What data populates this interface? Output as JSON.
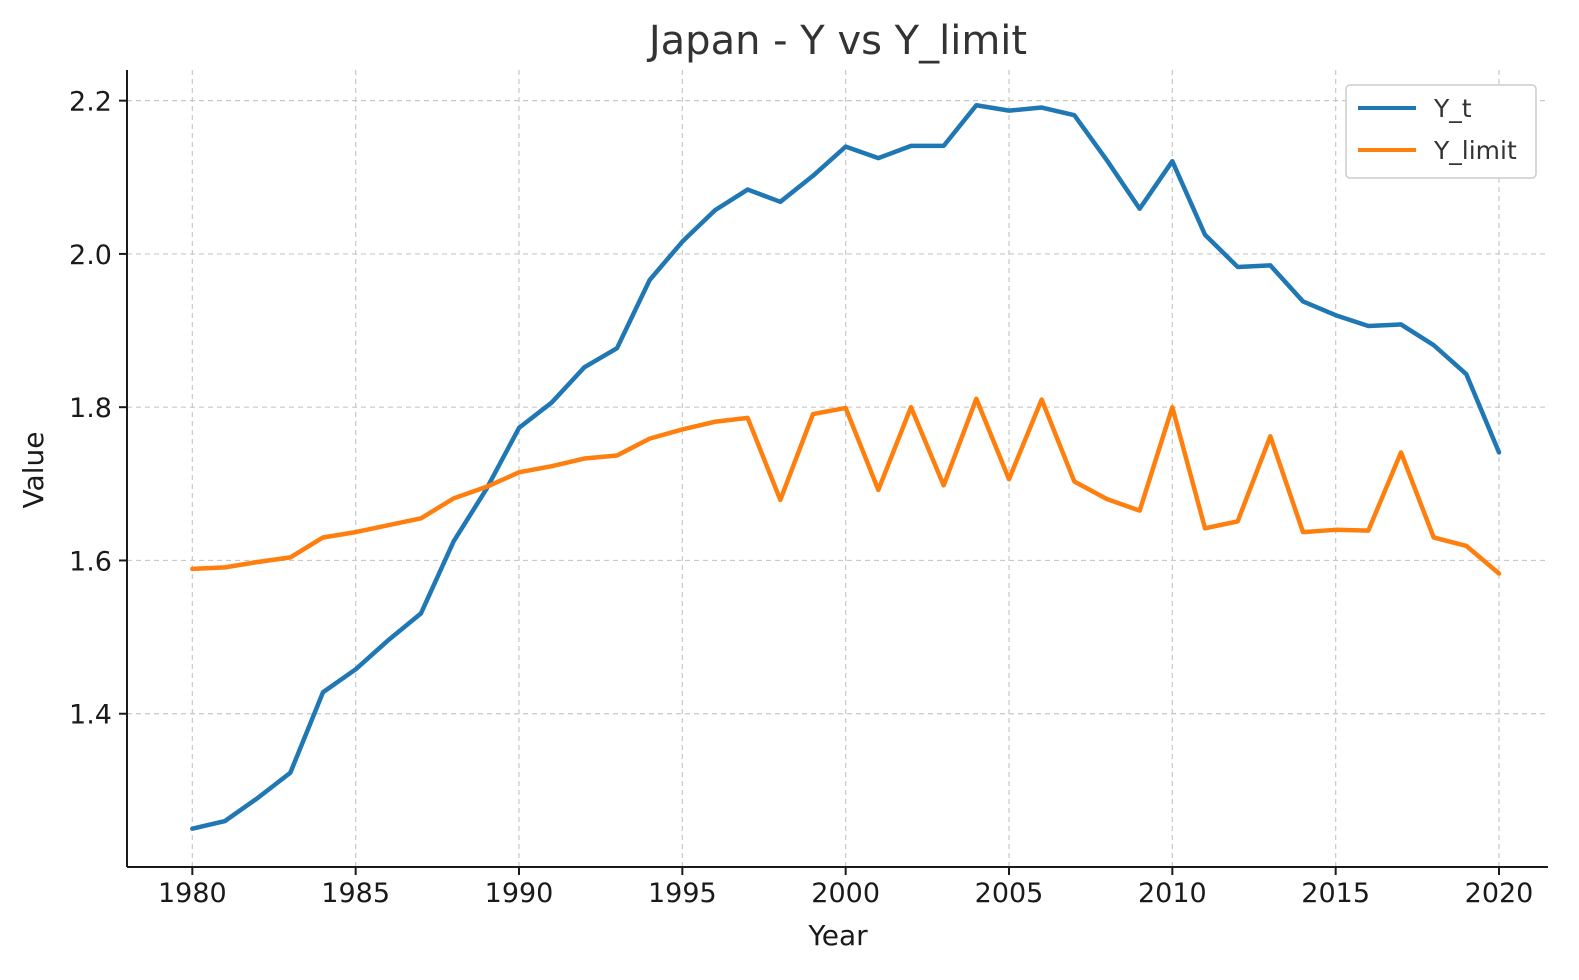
{
  "chart_data": {
    "type": "line",
    "title": "Japan - Y vs Y_limit",
    "xlabel": "Year",
    "ylabel": "Value",
    "xlim": [
      1978,
      2021.5
    ],
    "ylim": [
      1.2,
      2.24
    ],
    "xticks": [
      1980,
      1985,
      1990,
      1995,
      2000,
      2005,
      2010,
      2015,
      2020
    ],
    "yticks": [
      1.4,
      1.6,
      1.8,
      2.0,
      2.2
    ],
    "ytick_labels": [
      "1.4",
      "1.6",
      "1.8",
      "2.0",
      "2.2"
    ],
    "grid": true,
    "legend_position": "top-right",
    "x": [
      1980,
      1981,
      1982,
      1983,
      1984,
      1985,
      1986,
      1987,
      1988,
      1989,
      1990,
      1991,
      1992,
      1993,
      1994,
      1995,
      1996,
      1997,
      1998,
      1999,
      2000,
      2001,
      2002,
      2003,
      2004,
      2005,
      2006,
      2007,
      2008,
      2009,
      2010,
      2011,
      2012,
      2013,
      2014,
      2015,
      2016,
      2017,
      2018,
      2019,
      2020
    ],
    "series": [
      {
        "name": "Y_t",
        "color": "#1f77b4",
        "values": [
          1.25,
          1.26,
          1.29,
          1.323,
          1.428,
          1.458,
          1.496,
          1.531,
          1.625,
          1.693,
          1.773,
          1.806,
          1.852,
          1.877,
          1.966,
          2.016,
          2.057,
          2.084,
          2.068,
          2.102,
          2.14,
          2.125,
          2.141,
          2.141,
          2.194,
          2.187,
          2.191,
          2.181,
          2.122,
          2.059,
          2.121,
          2.025,
          1.983,
          1.985,
          1.938,
          1.92,
          1.906,
          1.908,
          1.881,
          1.843,
          1.741
        ]
      },
      {
        "name": "Y_limit",
        "color": "#ff7f0e",
        "values": [
          1.589,
          1.591,
          1.598,
          1.604,
          1.63,
          1.637,
          1.646,
          1.655,
          1.681,
          1.696,
          1.715,
          1.723,
          1.733,
          1.737,
          1.759,
          1.771,
          1.781,
          1.786,
          1.679,
          1.791,
          1.799,
          1.692,
          1.8,
          1.698,
          1.811,
          1.706,
          1.81,
          1.703,
          1.68,
          1.665,
          1.8,
          1.642,
          1.651,
          1.762,
          1.637,
          1.64,
          1.639,
          1.741,
          1.63,
          1.619,
          1.583
        ]
      }
    ]
  }
}
